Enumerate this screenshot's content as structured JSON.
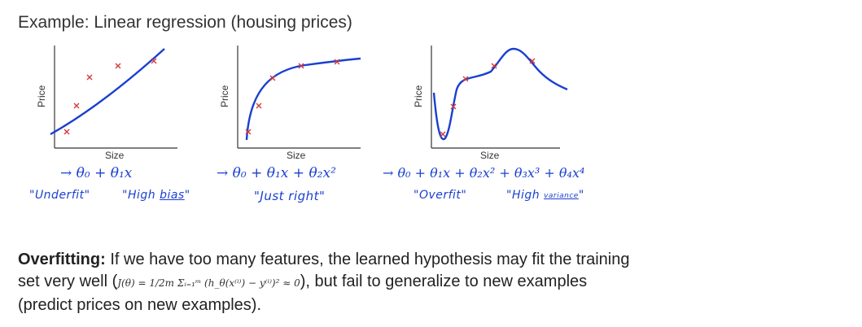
{
  "slide": {
    "title": "Example: Linear regression (housing prices)"
  },
  "plots": [
    {
      "ylabel": "Price",
      "xlabel": "Size",
      "hypothesis": "→ θ₀ + θ₁x",
      "note_left": "\"Underfit\"",
      "note_right_pre": "\"High ",
      "note_right_u": "bias",
      "note_right_post": "\""
    },
    {
      "ylabel": "Price",
      "xlabel": "Size",
      "hypothesis": "→ θ₀ + θ₁x + θ₂x²",
      "note_center": "\"Just right\""
    },
    {
      "ylabel": "Price",
      "xlabel": "Size",
      "hypothesis": "→ θ₀ + θ₁x + θ₂x² + θ₃x³ + θ₄x⁴",
      "note_left": "\"Overfit\"",
      "note_right_pre": "\"High ",
      "note_right_u": "variance",
      "note_right_post": "\""
    }
  ],
  "paragraph": {
    "bold": "Overfitting:",
    "text1": " If we have too many features, the learned hypothesis may fit the training set very well (",
    "formula": "J(θ) = 1/2m Σᵢ₌₁ᵐ (h_θ(x⁽ⁱ⁾) − y⁽ⁱ⁾)² ≈ 0",
    "text2": "), but fail to generalize to new examples (predict prices on new examples)."
  },
  "colors": {
    "curve": "#1a3fd1",
    "marker": "#d23a3a",
    "axis": "#333333"
  }
}
